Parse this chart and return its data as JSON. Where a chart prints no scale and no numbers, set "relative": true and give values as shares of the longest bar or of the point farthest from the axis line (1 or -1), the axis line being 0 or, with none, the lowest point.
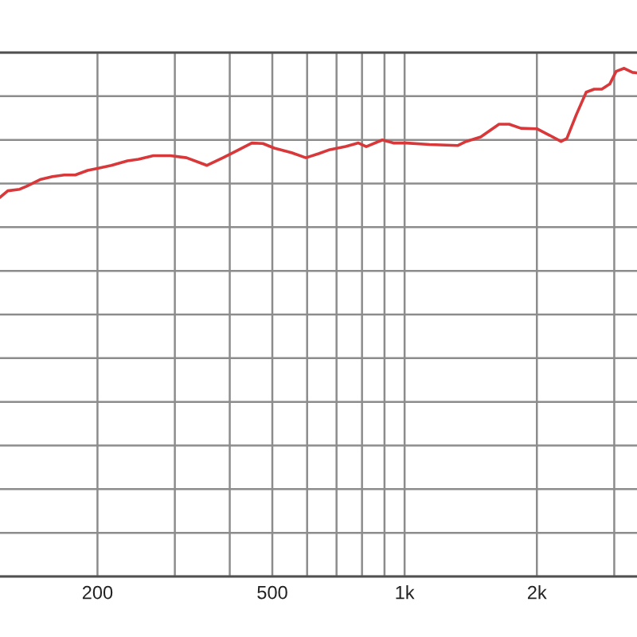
{
  "chart_data": {
    "type": "line",
    "relative": true,
    "log": "x",
    "x": [
      120,
      125,
      133,
      138,
      148,
      158,
      168,
      178,
      190,
      200,
      215,
      234,
      248,
      268,
      293,
      319,
      355,
      386,
      420,
      449,
      476,
      505,
      553,
      596,
      637,
      676,
      734,
      785,
      818,
      890,
      943,
      1010,
      1140,
      1320,
      1380,
      1490,
      1640,
      1730,
      1840,
      2000,
      2140,
      2270,
      2340,
      2460,
      2590,
      2700,
      2810,
      2930,
      3030,
      3160,
      3300,
      3380
    ],
    "series": [
      {
        "color": "#d9383a",
        "values": [
          0.746,
          0.759,
          0.762,
          0.768,
          0.781,
          0.787,
          0.79,
          0.79,
          0.799,
          0.803,
          0.809,
          0.818,
          0.821,
          0.828,
          0.828,
          0.824,
          0.809,
          0.824,
          0.84,
          0.853,
          0.852,
          0.843,
          0.834,
          0.824,
          0.832,
          0.84,
          0.846,
          0.853,
          0.846,
          0.859,
          0.853,
          0.853,
          0.85,
          0.848,
          0.856,
          0.865,
          0.89,
          0.89,
          0.882,
          0.881,
          0.868,
          0.856,
          0.862,
          0.909,
          0.953,
          0.959,
          0.959,
          0.969,
          0.994,
          1.0,
          0.992,
          0.991
        ]
      }
    ],
    "xlim": [
      120,
      3380
    ],
    "xticks": [
      200,
      {
        "value": 300,
        "label": null
      },
      {
        "value": 400,
        "label": null
      },
      500,
      {
        "value": 600,
        "label": null
      },
      {
        "value": 700,
        "label": null
      },
      {
        "value": 800,
        "label": null
      },
      {
        "value": 900,
        "label": null
      },
      {
        "value": 1000,
        "label": "1k"
      },
      {
        "value": 2000,
        "label": "2k"
      },
      {
        "value": 3000,
        "label": null
      }
    ],
    "grid": true,
    "tick_labels": "x"
  }
}
